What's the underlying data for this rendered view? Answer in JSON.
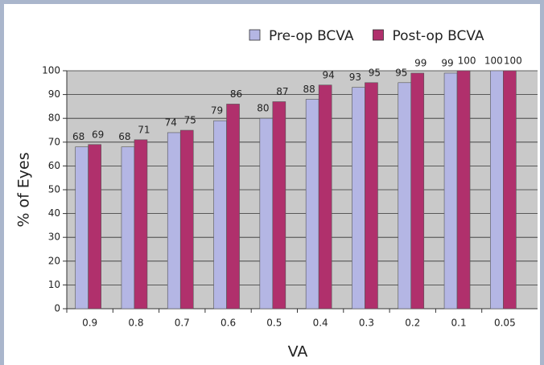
{
  "chart_data": {
    "type": "bar",
    "categories": [
      "0.9",
      "0.8",
      "0.7",
      "0.6",
      "0.5",
      "0.4",
      "0.3",
      "0.2",
      "0.1",
      "0.05"
    ],
    "series": [
      {
        "name": "Pre-op BCVA",
        "color": "#b4b6e4",
        "values": [
          68,
          68,
          74,
          79,
          80,
          88,
          93,
          95,
          99,
          100
        ]
      },
      {
        "name": "Post-op BCVA",
        "color": "#b0306c",
        "values": [
          69,
          71,
          75,
          86,
          87,
          94,
          95,
          99,
          100,
          100
        ]
      }
    ],
    "xlabel": "VA",
    "ylabel": "% of Eyes",
    "ylim": [
      0,
      100
    ],
    "yticks": [
      0,
      10,
      20,
      30,
      40,
      50,
      60,
      70,
      80,
      90,
      100
    ],
    "grid": true,
    "legend": "top-right"
  }
}
